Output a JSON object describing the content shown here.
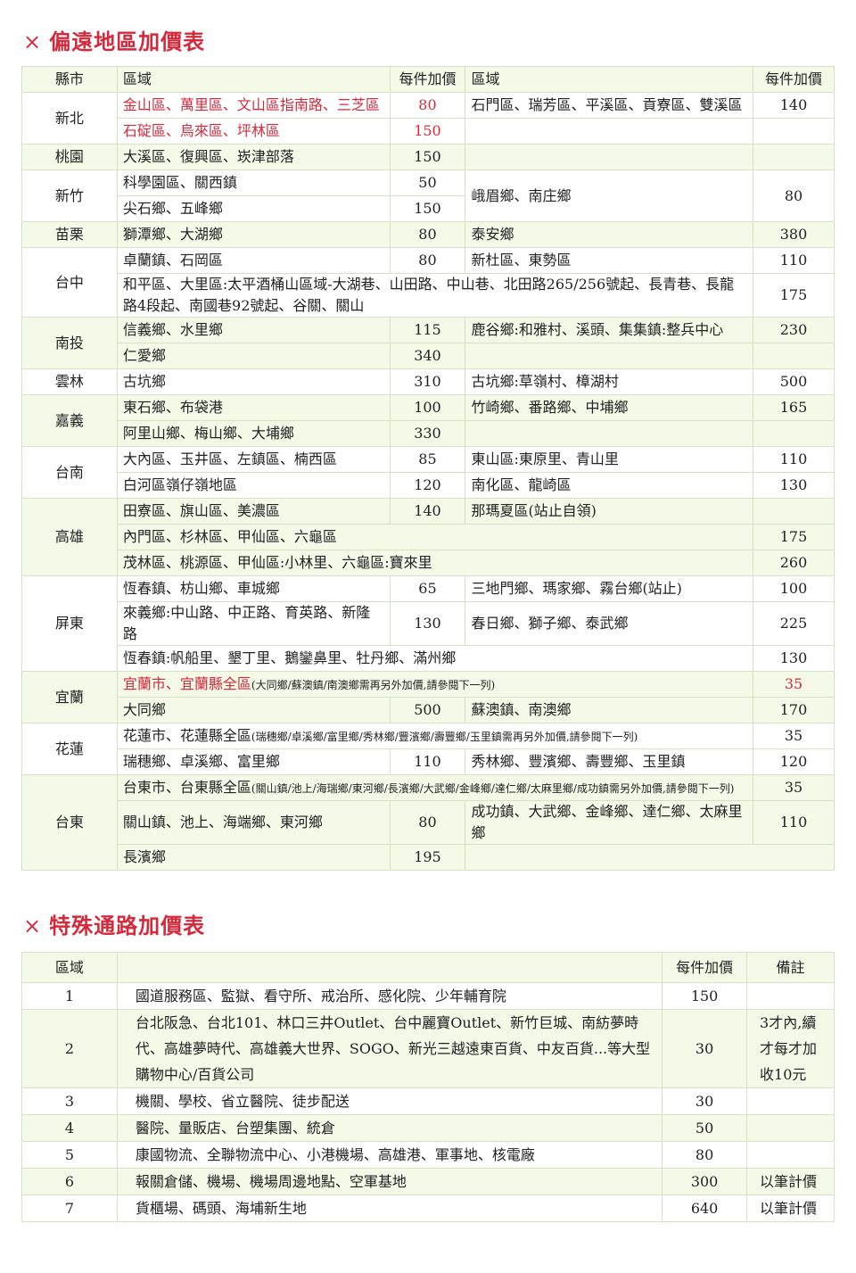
{
  "section1": {
    "title": "偏遠地區加價表",
    "title_icon": "×",
    "accent": "#d42a3c",
    "headers": [
      "縣市",
      "區域",
      "每件加價",
      "區域",
      "每件加價"
    ],
    "groups": [
      {
        "county": "新北",
        "shade": false,
        "rows": [
          [
            {
              "t": "金山區、萬里區、文山區指南路、三芝區",
              "red": true
            },
            {
              "t": "80",
              "red": true,
              "num": true
            },
            {
              "t": "石門區、瑞芳區、平溪區、貢寮區、雙溪區"
            },
            {
              "t": "140",
              "num": true
            }
          ],
          [
            {
              "t": "石碇區、烏來區、坪林區",
              "red": true
            },
            {
              "t": "150",
              "red": true,
              "num": true
            },
            {
              "t": ""
            },
            {
              "t": ""
            }
          ]
        ]
      },
      {
        "county": "桃園",
        "shade": true,
        "rows": [
          [
            {
              "t": "大溪區、復興區、崁津部落"
            },
            {
              "t": "150",
              "num": true
            },
            {
              "t": ""
            },
            {
              "t": ""
            }
          ]
        ]
      },
      {
        "county": "新竹",
        "shade": false,
        "rows": [
          [
            {
              "t": "科學園區、關西鎮"
            },
            {
              "t": "50",
              "num": true
            },
            {
              "t": "峨眉鄉、南庄鄉",
              "rowspan": 2
            },
            {
              "t": "80",
              "num": true,
              "rowspan": 2
            }
          ],
          [
            {
              "t": "尖石鄉、五峰鄉"
            },
            {
              "t": "150",
              "num": true
            }
          ]
        ]
      },
      {
        "county": "苗栗",
        "shade": true,
        "rows": [
          [
            {
              "t": "獅潭鄉、大湖鄉"
            },
            {
              "t": "80",
              "num": true
            },
            {
              "t": "泰安鄉"
            },
            {
              "t": "380",
              "num": true
            }
          ]
        ]
      },
      {
        "county": "台中",
        "shade": false,
        "rows": [
          [
            {
              "t": "卓蘭鎮、石岡區"
            },
            {
              "t": "80",
              "num": true
            },
            {
              "t": "新杜區、東勢區"
            },
            {
              "t": "110",
              "num": true
            }
          ],
          [
            {
              "t": "和平區、大里區:太平酒桶山區域-大湖巷、山田路、中山巷、北田路265/256號起、長青巷、長龍路4段起、南國巷92號起、谷關、關山",
              "span": 3
            },
            {
              "t": "175",
              "num": true
            }
          ]
        ]
      },
      {
        "county": "南投",
        "shade": true,
        "rows": [
          [
            {
              "t": "信義鄉、水里鄉"
            },
            {
              "t": "115",
              "num": true
            },
            {
              "t": "鹿谷鄉:和雅村、溪頭、集集鎮:整兵中心"
            },
            {
              "t": "230",
              "num": true
            }
          ],
          [
            {
              "t": "仁愛鄉"
            },
            {
              "t": "340",
              "num": true
            },
            {
              "t": ""
            },
            {
              "t": ""
            }
          ]
        ]
      },
      {
        "county": "雲林",
        "shade": false,
        "rows": [
          [
            {
              "t": "古坑鄉"
            },
            {
              "t": "310",
              "num": true
            },
            {
              "t": "古坑鄉:草嶺村、樟湖村"
            },
            {
              "t": "500",
              "num": true
            }
          ]
        ]
      },
      {
        "county": "嘉義",
        "shade": true,
        "rows": [
          [
            {
              "t": "東石鄉、布袋港"
            },
            {
              "t": "100",
              "num": true
            },
            {
              "t": "竹崎鄉、番路鄉、中埔鄉"
            },
            {
              "t": "165",
              "num": true
            }
          ],
          [
            {
              "t": "阿里山鄉、梅山鄉、大埔鄉"
            },
            {
              "t": "330",
              "num": true
            },
            {
              "t": ""
            },
            {
              "t": ""
            }
          ]
        ]
      },
      {
        "county": "台南",
        "shade": false,
        "rows": [
          [
            {
              "t": "大內區、玉井區、左鎮區、楠西區"
            },
            {
              "t": "85",
              "num": true
            },
            {
              "t": "東山區:東原里、青山里"
            },
            {
              "t": "110",
              "num": true
            }
          ],
          [
            {
              "t": "白河區嶺仔嶺地區"
            },
            {
              "t": "120",
              "num": true
            },
            {
              "t": "南化區、龍崎區"
            },
            {
              "t": "130",
              "num": true
            }
          ]
        ]
      },
      {
        "county": "高雄",
        "shade": true,
        "rows": [
          [
            {
              "t": "田寮區、旗山區、美濃區"
            },
            {
              "t": "140",
              "num": true
            },
            {
              "t": "那瑪夏區(站止自領)"
            },
            {
              "t": "",
              "diag": true
            }
          ],
          [
            {
              "t": "內門區、杉林區、甲仙區、六龜區",
              "span": 3
            },
            {
              "t": "175",
              "num": true
            }
          ],
          [
            {
              "t": "茂林區、桃源區、甲仙區:小林里、六龜區:寶來里",
              "span": 3
            },
            {
              "t": "260",
              "num": true
            }
          ]
        ]
      },
      {
        "county": "屏東",
        "shade": false,
        "rows": [
          [
            {
              "t": "恆春鎮、枋山鄉、車城鄉"
            },
            {
              "t": "65",
              "num": true
            },
            {
              "t": "三地門鄉、瑪家鄉、霧台鄉(站止)"
            },
            {
              "t": "100",
              "num": true
            }
          ],
          [
            {
              "t": "來義鄉:中山路、中正路、育英路、新隆路"
            },
            {
              "t": "130",
              "num": true
            },
            {
              "t": "春日鄉、獅子鄉、泰武鄉"
            },
            {
              "t": "225",
              "num": true
            }
          ],
          [
            {
              "t": "恆春鎮:帆船里、墾丁里、鵝鑾鼻里、牡丹鄉、滿州鄉",
              "span": 3
            },
            {
              "t": "130",
              "num": true
            }
          ]
        ]
      },
      {
        "county": "宜蘭",
        "shade": true,
        "rows": [
          [
            {
              "t": "宜蘭市、宜蘭縣全區",
              "red": true,
              "note": "(大同鄉/蘇澳鎮/南澳鄉需再另外加價,請參閱下一列)",
              "span": 3
            },
            {
              "t": "35",
              "num": true,
              "red": true
            }
          ],
          [
            {
              "t": "大同鄉"
            },
            {
              "t": "500",
              "num": true
            },
            {
              "t": "蘇澳鎮、南澳鄉"
            },
            {
              "t": "170",
              "num": true
            }
          ]
        ]
      },
      {
        "county": "花蓮",
        "shade": false,
        "rows": [
          [
            {
              "t": "花蓮市、花蓮縣全區",
              "note": "(瑞穗鄉/卓溪鄉/富里鄉/秀林鄉/豐濱鄉/壽豐鄉/玉里鎮需再另外加價,請參閱下一列)",
              "span": 3
            },
            {
              "t": "35",
              "num": true
            }
          ],
          [
            {
              "t": "瑞穗鄉、卓溪鄉、富里鄉"
            },
            {
              "t": "110",
              "num": true
            },
            {
              "t": "秀林鄉、豐濱鄉、壽豐鄉、玉里鎮"
            },
            {
              "t": "120",
              "num": true
            }
          ]
        ]
      },
      {
        "county": "台東",
        "shade": true,
        "rows": [
          [
            {
              "t": "台東市、台東縣全區",
              "note": "(關山鎮/池上/海瑞鄉/東河鄉/長濱鄉/大武鄉/金峰鄉/達仁鄉/太麻里鄉/成功鎮需另外加價,請參閱下一列)",
              "span": 3
            },
            {
              "t": "35",
              "num": true
            }
          ],
          [
            {
              "t": "關山鎮、池上、海端鄉、東河鄉"
            },
            {
              "t": "80",
              "num": true
            },
            {
              "t": "成功鎮、大武鄉、金峰鄉、達仁鄉、太麻里鄉"
            },
            {
              "t": "110",
              "num": true
            }
          ],
          [
            {
              "t": "長濱鄉"
            },
            {
              "t": "195",
              "num": true
            },
            {
              "t": "",
              "span": 2
            }
          ]
        ]
      }
    ]
  },
  "section2": {
    "title": "特殊通路加價表",
    "title_icon": "×",
    "headers": [
      "區域",
      "",
      "每件加價",
      "備註"
    ],
    "rows": [
      {
        "zone": "1",
        "desc": "國道服務區、監獄、看守所、戒治所、感化院、少年輔育院",
        "price": "150",
        "note": "",
        "shade": false
      },
      {
        "zone": "2",
        "desc": "台北阪急、台北101、林口三井Outlet、台中麗寶Outlet、新竹巨城、南紡夢時代、高雄夢時代、高雄義大世界、SOGO、新光三越遠東百貨、中友百貨...等大型購物中心/百貨公司",
        "price": "30",
        "note": "3才內,續才每才加收10元",
        "shade": true
      },
      {
        "zone": "3",
        "desc": "機關、學校、省立醫院、徒步配送",
        "price": "30",
        "note": "",
        "shade": false
      },
      {
        "zone": "4",
        "desc": "醫院、量販店、台塑集團、統倉",
        "price": "50",
        "note": "",
        "shade": true
      },
      {
        "zone": "5",
        "desc": "康國物流、全聯物流中心、小港機場、高雄港、軍事地、核電廠",
        "price": "80",
        "note": "",
        "shade": false
      },
      {
        "zone": "6",
        "desc": "報關倉儲、機場、機場周邊地點、空軍基地",
        "price": "300",
        "note": "以筆計價",
        "shade": true
      },
      {
        "zone": "7",
        "desc": "貨櫃場、碼頭、海埔新生地",
        "price": "640",
        "note": "以筆計價",
        "shade": false
      }
    ]
  }
}
